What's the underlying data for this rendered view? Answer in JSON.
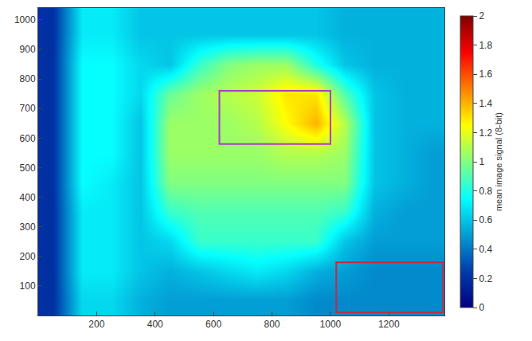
{
  "chart_data": {
    "type": "heatmap",
    "x": [
      50,
      150,
      250,
      350,
      450,
      550,
      650,
      750,
      850,
      950,
      1050,
      1150,
      1250,
      1350
    ],
    "y": [
      50,
      150,
      250,
      350,
      450,
      550,
      650,
      750,
      850,
      950,
      1050
    ],
    "z": [
      [
        0.2,
        0.65,
        0.65,
        0.55,
        0.5,
        0.5,
        0.5,
        0.5,
        0.5,
        0.45,
        0.45,
        0.45,
        0.45,
        0.45
      ],
      [
        0.2,
        0.7,
        0.7,
        0.6,
        0.55,
        0.6,
        0.65,
        0.7,
        0.65,
        0.55,
        0.5,
        0.45,
        0.45,
        0.45
      ],
      [
        0.2,
        0.7,
        0.7,
        0.6,
        0.65,
        0.85,
        0.85,
        0.85,
        0.85,
        0.85,
        0.6,
        0.5,
        0.5,
        0.5
      ],
      [
        0.2,
        0.7,
        0.7,
        0.6,
        0.85,
        0.9,
        0.9,
        0.9,
        0.9,
        0.9,
        0.85,
        0.55,
        0.5,
        0.5
      ],
      [
        0.2,
        0.75,
        0.7,
        0.6,
        1.0,
        1.0,
        1.0,
        1.0,
        1.0,
        1.0,
        1.0,
        0.6,
        0.55,
        0.5
      ],
      [
        0.2,
        0.75,
        0.75,
        0.6,
        1.05,
        1.05,
        1.05,
        1.05,
        1.1,
        1.1,
        1.05,
        0.6,
        0.55,
        0.5
      ],
      [
        0.2,
        0.75,
        0.75,
        0.6,
        1.05,
        1.05,
        1.05,
        1.1,
        1.25,
        1.4,
        1.1,
        0.6,
        0.55,
        0.55
      ],
      [
        0.2,
        0.75,
        0.75,
        0.65,
        0.95,
        1.05,
        1.1,
        1.15,
        1.3,
        1.3,
        0.9,
        0.6,
        0.55,
        0.55
      ],
      [
        0.2,
        0.75,
        0.75,
        0.65,
        0.6,
        0.85,
        1.0,
        1.05,
        1.05,
        0.8,
        0.6,
        0.55,
        0.55,
        0.55
      ],
      [
        0.2,
        0.7,
        0.7,
        0.6,
        0.6,
        0.6,
        0.6,
        0.6,
        0.6,
        0.6,
        0.55,
        0.55,
        0.55,
        0.55
      ],
      [
        0.2,
        0.7,
        0.7,
        0.6,
        0.6,
        0.6,
        0.6,
        0.6,
        0.6,
        0.6,
        0.55,
        0.55,
        0.55,
        0.55
      ]
    ],
    "xlim": [
      0,
      1390
    ],
    "xticks": [
      200,
      400,
      600,
      800,
      1000,
      1200
    ],
    "ylim": [
      0,
      1040
    ],
    "yticks": [
      100,
      200,
      300,
      400,
      500,
      600,
      700,
      800,
      900,
      1000
    ],
    "colorbar_title": "mean image signal (8-bit)",
    "zlim": [
      0,
      2
    ],
    "zticks": [
      0,
      0.2,
      0.4,
      0.6,
      0.8,
      1,
      1.2,
      1.4,
      1.6,
      1.8,
      2
    ],
    "rectangles": [
      {
        "x0": 620,
        "x1": 1000,
        "y0": 580,
        "y1": 760,
        "color": "#b03cc8"
      },
      {
        "x0": 1020,
        "x1": 1385,
        "y0": 10,
        "y1": 180,
        "color": "#c8283c"
      }
    ]
  }
}
